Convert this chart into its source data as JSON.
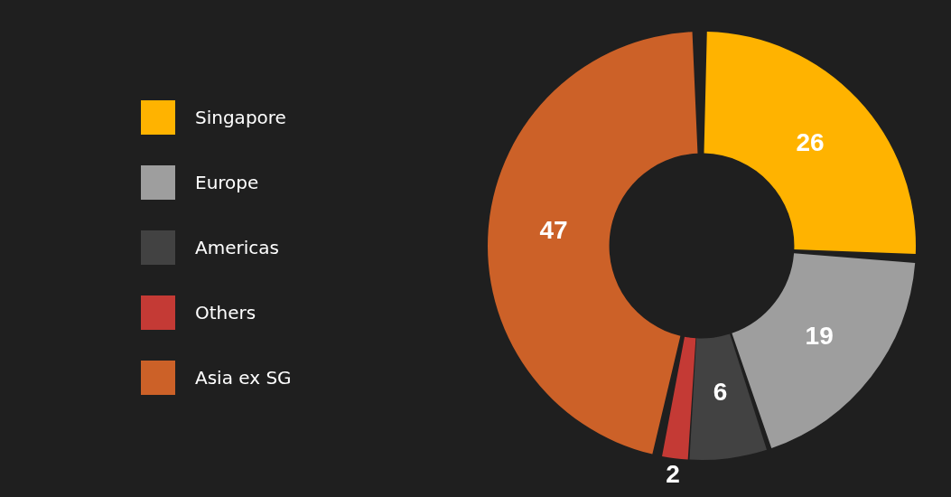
{
  "chart_data": {
    "type": "donut",
    "categories": [
      "Singapore",
      "Europe",
      "Americas",
      "Others",
      "Asia ex SG"
    ],
    "values": [
      26,
      19,
      6,
      2,
      47
    ],
    "colors": [
      "#ffb300",
      "#9e9e9e",
      "#424242",
      "#c43a35",
      "#cc6128"
    ],
    "data_labels": true,
    "legend": "left"
  }
}
